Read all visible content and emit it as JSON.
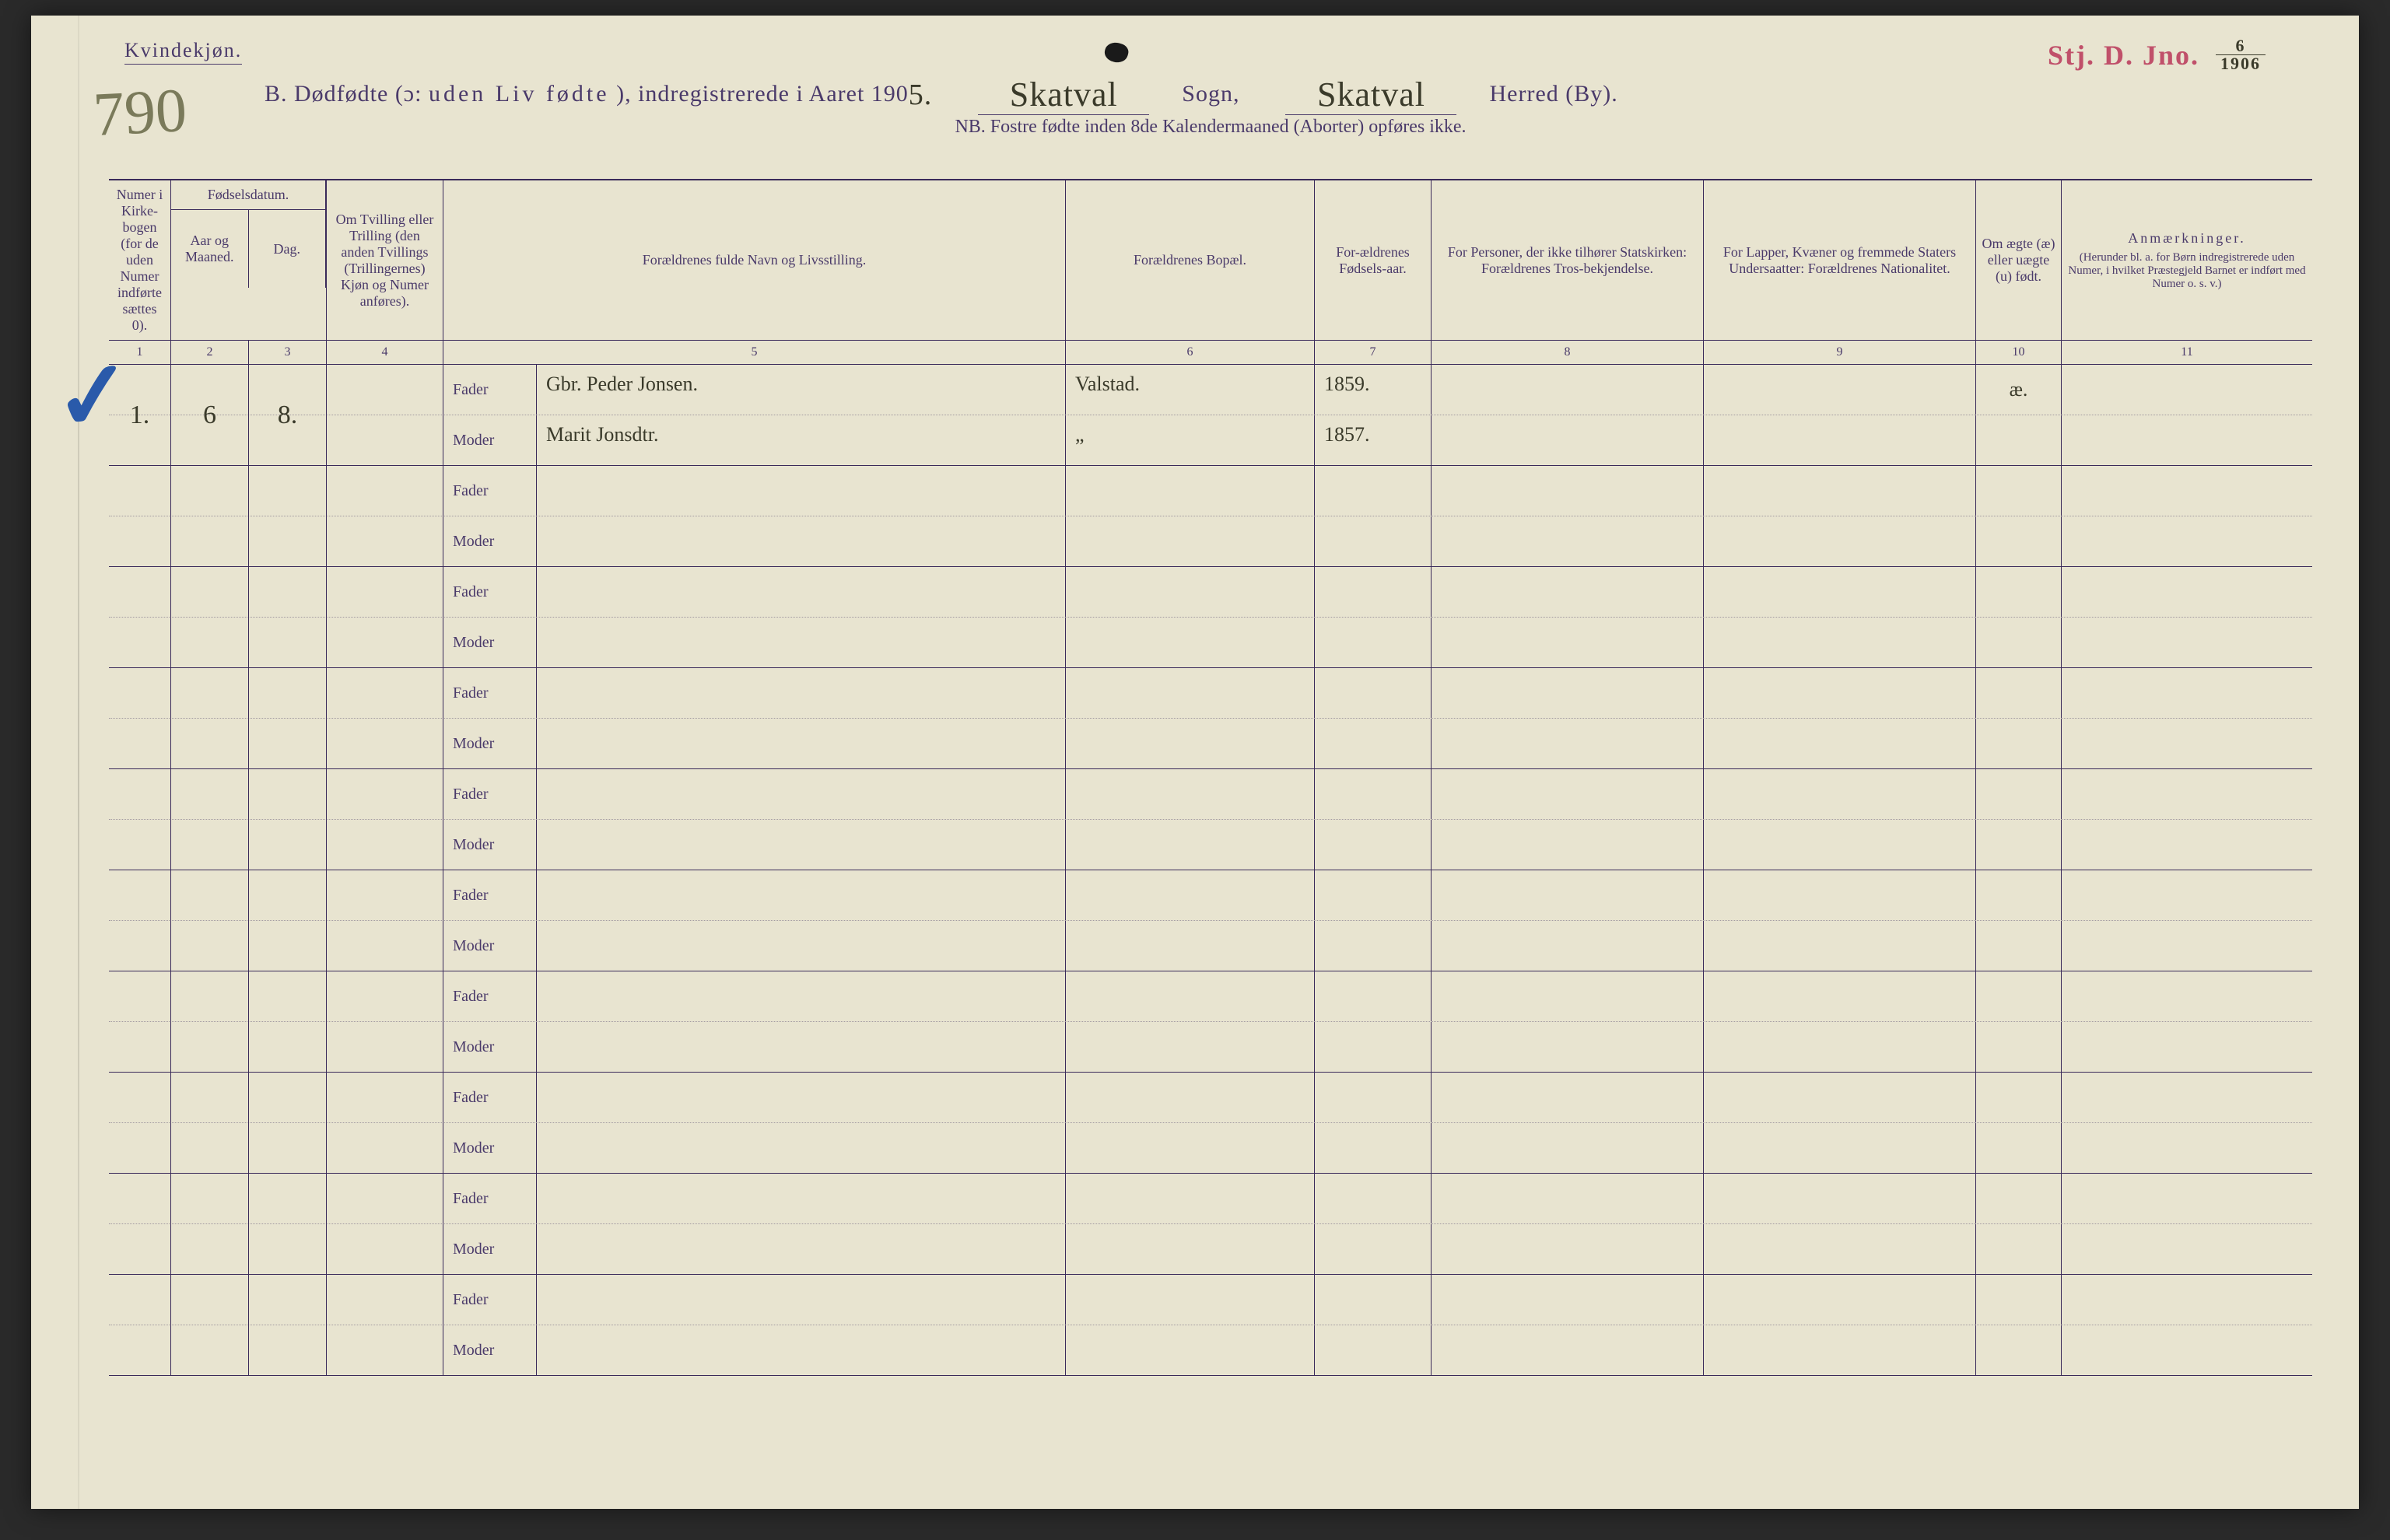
{
  "colors": {
    "paper": "#e8e4d0",
    "print_ink": "#4a3a6a",
    "pen_ink": "#3a3a2a",
    "stamp_red": "#c0506a",
    "blue_pencil": "#2a5aaa",
    "pencil_grey": "#7a7a5a",
    "rule_line": "#3a2a5a"
  },
  "header": {
    "gender": "Kvindekjøn.",
    "title_prefix": "B.   Dødfødte (ɔ:",
    "title_spaced": "uden Liv fødte",
    "title_mid": "), indregistrerede i Aaret 190",
    "year_suffix_hand": "5.",
    "sogn_label": "Sogn,",
    "sogn_hand": "Skatval",
    "herred_label": "Herred (By).",
    "herred_hand": "Skatval",
    "nb": "NB.  Fostre fødte inden 8de Kalendermaaned (Aborter) opføres ikke.",
    "stamp": "Stj. D. Jno.",
    "stamp_num": "6",
    "stamp_den": "1906",
    "page_number_hand": "790"
  },
  "columns": {
    "c1": "Numer i Kirke-bogen (for de uden Numer indførte sættes 0).",
    "c2_group": "Fødselsdatum.",
    "c2a": "Aar og Maaned.",
    "c2b": "Dag.",
    "c4": "Om Tvilling eller Trilling (den anden Tvillings (Trillingernes) Kjøn og Numer anføres).",
    "c5": "Forældrenes fulde Navn og Livsstilling.",
    "c6": "Forældrenes Bopæl.",
    "c7": "For-ældrenes Fødsels-aar.",
    "c8": "For Personer, der ikke tilhører Statskirken: Forældrenes Tros-bekjendelse.",
    "c9": "For Lapper, Kvæner og fremmede Staters Undersaatter: Forældrenes Nationalitet.",
    "c10": "Om ægte (æ) eller uægte (u) født.",
    "c11": "Anmærkninger.",
    "c11_sub": "(Herunder bl. a. for Børn indregistrerede uden Numer, i hvilket Præstegjeld Barnet er indført med Numer o. s. v.)",
    "nums": [
      "1",
      "2",
      "3",
      "4",
      "5",
      "6",
      "7",
      "8",
      "9",
      "10",
      "11"
    ],
    "fader": "Fader",
    "moder": "Moder"
  },
  "entries": [
    {
      "num": "1.",
      "aar_maaned": "6",
      "dag": "8.",
      "tvilling": "",
      "fader_navn": "Gbr. Peder Jonsen.",
      "moder_navn": "Marit Jonsdtr.",
      "bopael_fader": "Valstad.",
      "bopael_moder": "„",
      "fodselsaar_fader": "1859.",
      "fodselsaar_moder": "1857.",
      "aegte": "æ.",
      "anm": ""
    },
    {},
    {},
    {},
    {},
    {},
    {},
    {},
    {},
    {}
  ]
}
